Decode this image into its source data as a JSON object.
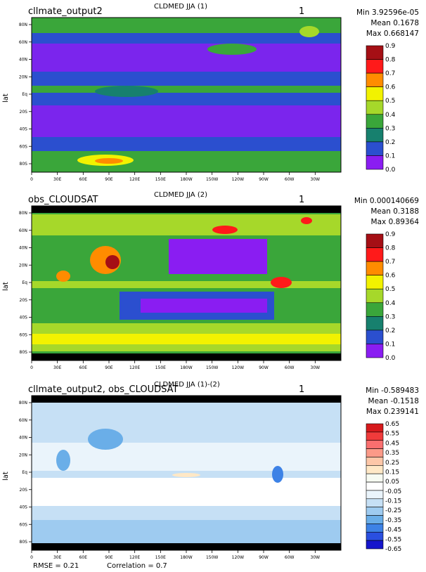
{
  "panels": [
    {
      "left_title": "cllmate_output2",
      "center_title": "CLDMED JJA (1)",
      "number": "1",
      "stats": [
        "Min 3.92596e-05",
        "Mean 0.1678",
        "Max 0.668147"
      ],
      "ylabel": "lat",
      "colorbar": {
        "labels": [
          "0.9",
          "0.8",
          "0.7",
          "0.6",
          "0.5",
          "0.4",
          "0.3",
          "0.2",
          "0.1",
          "0.0"
        ],
        "colors": [
          "#a50f15",
          "#ff1a1a",
          "#ff8c00",
          "#f2f200",
          "#a6d82a",
          "#3aa63a",
          "#17806e",
          "#2b4fcf",
          "#8a1df2"
        ]
      }
    },
    {
      "left_title": "obs_CLOUDSAT",
      "center_title": "CLDMED JJA (2)",
      "number": "1",
      "stats": [
        "Min 0.000140669",
        "Mean 0.3188",
        "Max 0.89364"
      ],
      "ylabel": "lat",
      "colorbar": {
        "labels": [
          "0.9",
          "0.8",
          "0.7",
          "0.6",
          "0.5",
          "0.4",
          "0.3",
          "0.2",
          "0.1",
          "0.0"
        ],
        "colors": [
          "#a50f15",
          "#ff1a1a",
          "#ff8c00",
          "#f2f200",
          "#a6d82a",
          "#3aa63a",
          "#17806e",
          "#2b4fcf",
          "#8a1df2"
        ]
      }
    },
    {
      "left_title": "cllmate_output2, obs_CLOUDSAT",
      "center_title": "CLDMED JJA (1)-(2)",
      "number": "1",
      "stats": [
        "Min -0.589483",
        "Mean -0.1518",
        "Max 0.239141"
      ],
      "ylabel": "lat",
      "colorbar": {
        "labels": [
          "0.65",
          "0.55",
          "0.45",
          "0.35",
          "0.25",
          "0.15",
          "0.05",
          "-0.05",
          "-0.15",
          "-0.25",
          "-0.35",
          "-0.45",
          "-0.55",
          "-0.65"
        ],
        "colors": [
          "#d7191c",
          "#f03b3b",
          "#fa6f6f",
          "#fb9a88",
          "#fdc7a8",
          "#ffe8c6",
          "#f7fbf2",
          "#ffffff",
          "#eaf4fb",
          "#c6e0f5",
          "#9ecbf0",
          "#6aaee8",
          "#3d82e6",
          "#2a4fe0",
          "#1515cc"
        ]
      }
    }
  ],
  "lat_ticks": [
    "80N",
    "60N",
    "40N",
    "20N",
    "Eq",
    "20S",
    "40S",
    "60S",
    "80S"
  ],
  "lon_ticks": [
    "0",
    "30E",
    "60E",
    "90E",
    "120E",
    "150E",
    "180W",
    "150W",
    "120W",
    "90W",
    "60W",
    "30W"
  ],
  "footer": {
    "rmse": "RMSE = 0.21",
    "correlation": "Correlation = 0.7"
  }
}
